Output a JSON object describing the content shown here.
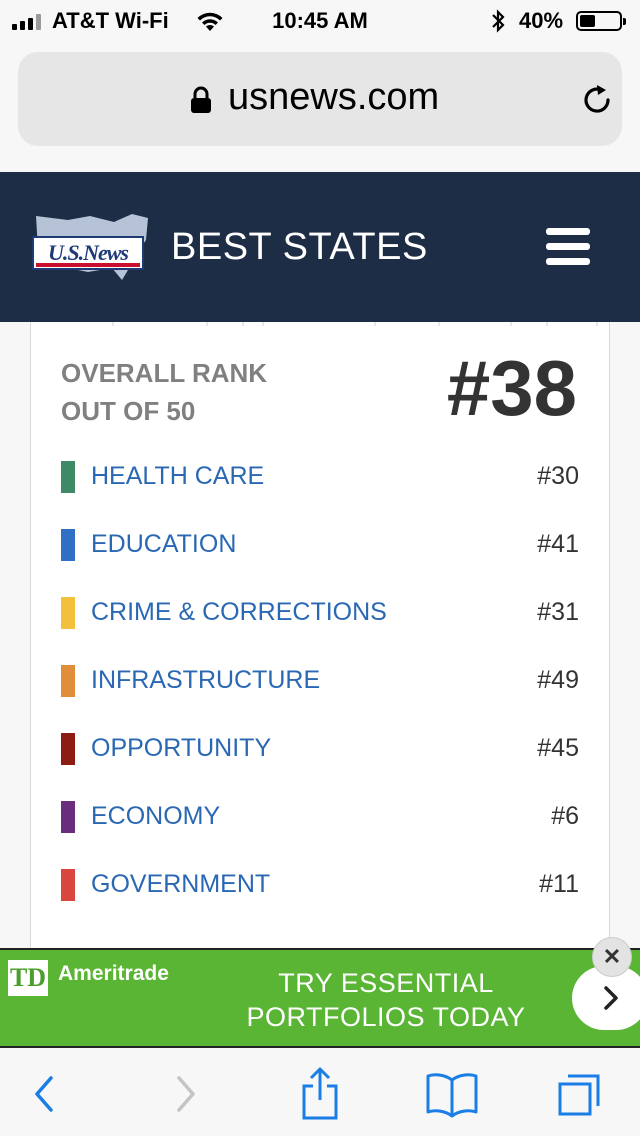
{
  "status_bar": {
    "carrier": "AT&T Wi-Fi",
    "time": "10:45 AM",
    "battery_percent": "40%",
    "battery_level": 0.4
  },
  "browser": {
    "url": "usnews.com"
  },
  "header": {
    "logo_text": "U.S.News",
    "title": "BEST STATES"
  },
  "overall": {
    "label_line1": "OVERALL RANK",
    "label_line2": "OUT OF 50",
    "rank": "#38"
  },
  "categories": [
    {
      "label": "HEALTH CARE",
      "rank": "#30",
      "color": "#3f8a66"
    },
    {
      "label": "EDUCATION",
      "rank": "#41",
      "color": "#2f6fc4"
    },
    {
      "label": "CRIME & CORRECTIONS",
      "rank": "#31",
      "color": "#f2c03a"
    },
    {
      "label": "INFRASTRUCTURE",
      "rank": "#49",
      "color": "#e08e3a"
    },
    {
      "label": "OPPORTUNITY",
      "rank": "#45",
      "color": "#8c1c14"
    },
    {
      "label": "ECONOMY",
      "rank": "#6",
      "color": "#6a2d7e"
    },
    {
      "label": "GOVERNMENT",
      "rank": "#11",
      "color": "#d8463d"
    }
  ],
  "ad": {
    "brand": "Ameritrade",
    "logo": "TD",
    "cta_line1": "TRY ESSENTIAL",
    "cta_line2": "PORTFOLIOS TODAY",
    "background": "#5bb535"
  },
  "colors": {
    "header_bg": "#1e2d46",
    "link_blue": "#2a68b4",
    "ios_blue": "#1a7ee6"
  }
}
